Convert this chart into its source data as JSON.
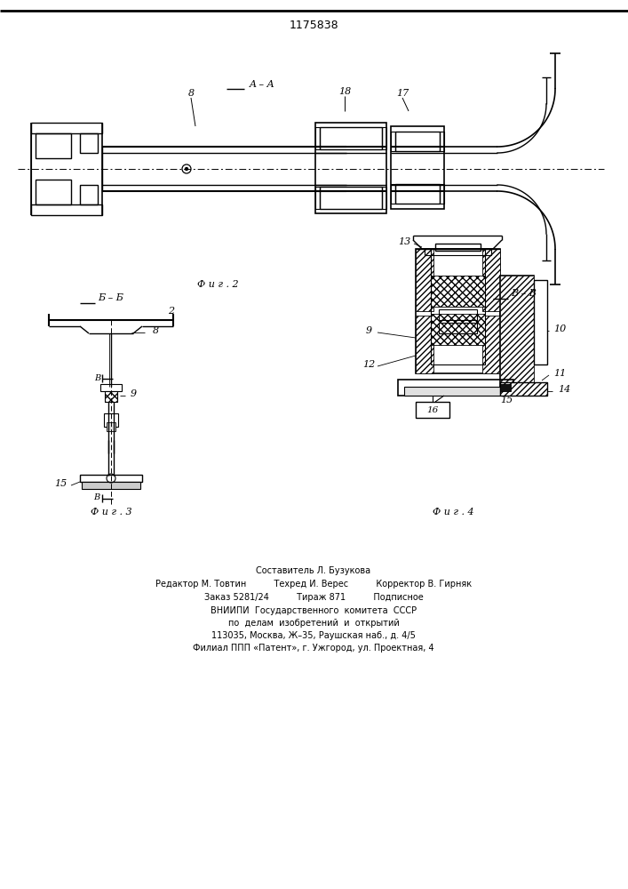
{
  "patent_number": "1175838",
  "bg": "#ffffff",
  "lc": "#000000",
  "footer_lines": [
    "Составитель Л. Бузукова",
    "Редактор М. Товтин          Техред И. Верес          Корректор В. Гирняк",
    "Заказ 5281/24          Тираж 871          Подписное",
    "ВНИИПИ  Государственного  комитета  СССР",
    "по  делам  изобретений  и  открытий",
    "113035, Москва, Ж–35, Раушская наб., д. 4/5",
    "Филиал ППП «Патент», г. Ужгород, ул. Проектная, 4"
  ]
}
